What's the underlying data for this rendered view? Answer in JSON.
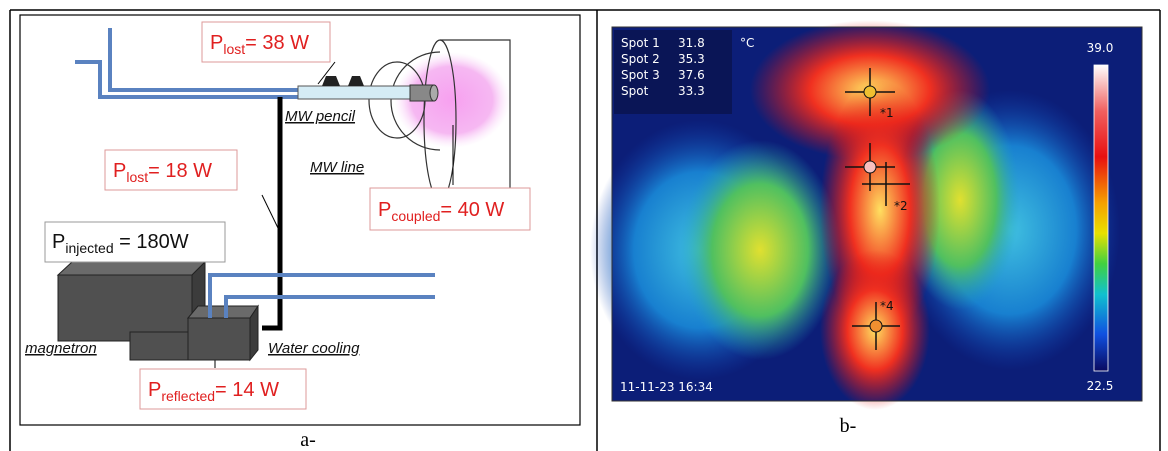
{
  "diagram": {
    "labels": [
      {
        "main": "P",
        "sub": "lost",
        "rest": "= 38 W"
      },
      {
        "main": "P",
        "sub": "lost",
        "rest": "= 18 W"
      },
      {
        "main": "P",
        "sub": "coupled",
        "rest": "= 40 W"
      },
      {
        "main": "P",
        "sub": "injected",
        "rest": " = 180W"
      },
      {
        "main": "P",
        "sub": "reflected",
        "rest": "= 14 W"
      }
    ],
    "components": [
      "MW pencil",
      "MW line",
      "magnetron",
      "Water cooling"
    ],
    "caption": "a-"
  },
  "thermal": {
    "spots": [
      [
        "Spot 1",
        "31.8"
      ],
      [
        "Spot 2",
        "35.3"
      ],
      [
        "Spot 3",
        "37.6"
      ],
      [
        "Spot",
        "33.3"
      ]
    ],
    "unit": "°C",
    "scale_max": "39.0",
    "scale_min": "22.5",
    "timestamp": "11-11-23 16:34",
    "markers": [
      "*1",
      "*2",
      "*4"
    ],
    "caption": "b-"
  }
}
